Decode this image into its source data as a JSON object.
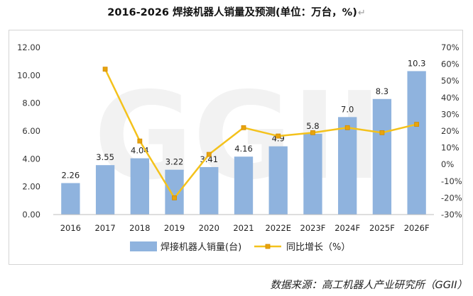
{
  "title": "2016-2026 焊接机器人销量及预测(单位：万台，%)",
  "title_mark": "↵",
  "source": "数据来源：高工机器人产业研究所（GGII）",
  "watermark": "GGII",
  "chart_data": {
    "type": "bar",
    "categories": [
      "2016",
      "2017",
      "2018",
      "2019",
      "2020",
      "2021",
      "2022E",
      "2023F",
      "2024F",
      "2025F",
      "2026F"
    ],
    "series": [
      {
        "name": "焊接机器人销量(台)",
        "type": "bar",
        "axis": "left",
        "color": "#8fb3de",
        "values": [
          2.26,
          3.55,
          4.04,
          3.22,
          3.41,
          4.16,
          4.9,
          5.8,
          7.0,
          8.3,
          10.3
        ],
        "labels": [
          "2.26",
          "3.55",
          "4.04",
          "3.22",
          "3.41",
          "4.16",
          "4.9",
          "5.8",
          "7.0",
          "8.3",
          "10.3"
        ]
      },
      {
        "name": "同比增长（%）",
        "type": "line",
        "axis": "right",
        "color": "#f4c21c",
        "values": [
          null,
          57,
          14,
          -20,
          6,
          22,
          17,
          19,
          22,
          19,
          24
        ]
      }
    ],
    "y_left": {
      "lim": [
        0,
        12
      ],
      "ticks": [
        0,
        2,
        4,
        6,
        8,
        10,
        12
      ],
      "tick_labels": [
        "0.00",
        "2.00",
        "4.00",
        "6.00",
        "8.00",
        "10.00",
        "12.00"
      ]
    },
    "y_right": {
      "lim": [
        -30,
        70
      ],
      "ticks": [
        -30,
        -20,
        -10,
        0,
        10,
        20,
        30,
        40,
        50,
        60,
        70
      ],
      "tick_labels": [
        "-30%",
        "-20%",
        "-10%",
        "0%",
        "10%",
        "20%",
        "30%",
        "40%",
        "50%",
        "60%",
        "70%"
      ]
    },
    "grid": false,
    "legend": "bottom"
  }
}
